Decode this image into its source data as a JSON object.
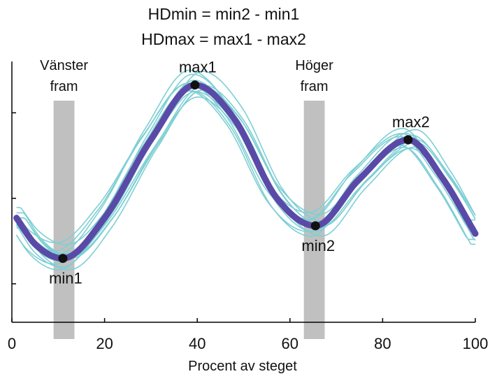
{
  "chart_data": {
    "type": "line",
    "title_lines": [
      "HDmin  = min2 - min1",
      "HDmax = max1 - max2"
    ],
    "xlabel": "Procent av steget",
    "ylabel": "",
    "xlim": [
      0,
      100
    ],
    "xticks": [
      0,
      20,
      40,
      60,
      80,
      100
    ],
    "ylim": [
      0,
      1
    ],
    "ytick_count": 3,
    "grid": false,
    "colors": {
      "trials": "#7ecfd3",
      "mean": "#5a4aa8",
      "points": "#111111",
      "bands": "#c0c0c0"
    },
    "stance_bands": [
      {
        "label_lines": [
          "Vänster",
          "fram"
        ],
        "x_start": 9,
        "x_end": 13.5
      },
      {
        "label_lines": [
          "Höger",
          "fram"
        ],
        "x_start": 63,
        "x_end": 67.5
      }
    ],
    "mean_curve": {
      "x": [
        1,
        5,
        11,
        20,
        30,
        39.5,
        48,
        57,
        65.5,
        75,
        85.5,
        93,
        100
      ],
      "y": [
        0.4,
        0.3,
        0.245,
        0.4,
        0.7,
        0.91,
        0.78,
        0.48,
        0.37,
        0.55,
        0.7,
        0.55,
        0.34
      ]
    },
    "trial_count": 14,
    "key_points": [
      {
        "label": "max1",
        "x": 39.5,
        "y": 0.91,
        "label_pos": "above"
      },
      {
        "label": "min1",
        "x": 11,
        "y": 0.245,
        "label_pos": "below"
      },
      {
        "label": "min2",
        "x": 65.5,
        "y": 0.37,
        "label_pos": "below"
      },
      {
        "label": "max2",
        "x": 85.5,
        "y": 0.7,
        "label_pos": "above"
      }
    ]
  }
}
